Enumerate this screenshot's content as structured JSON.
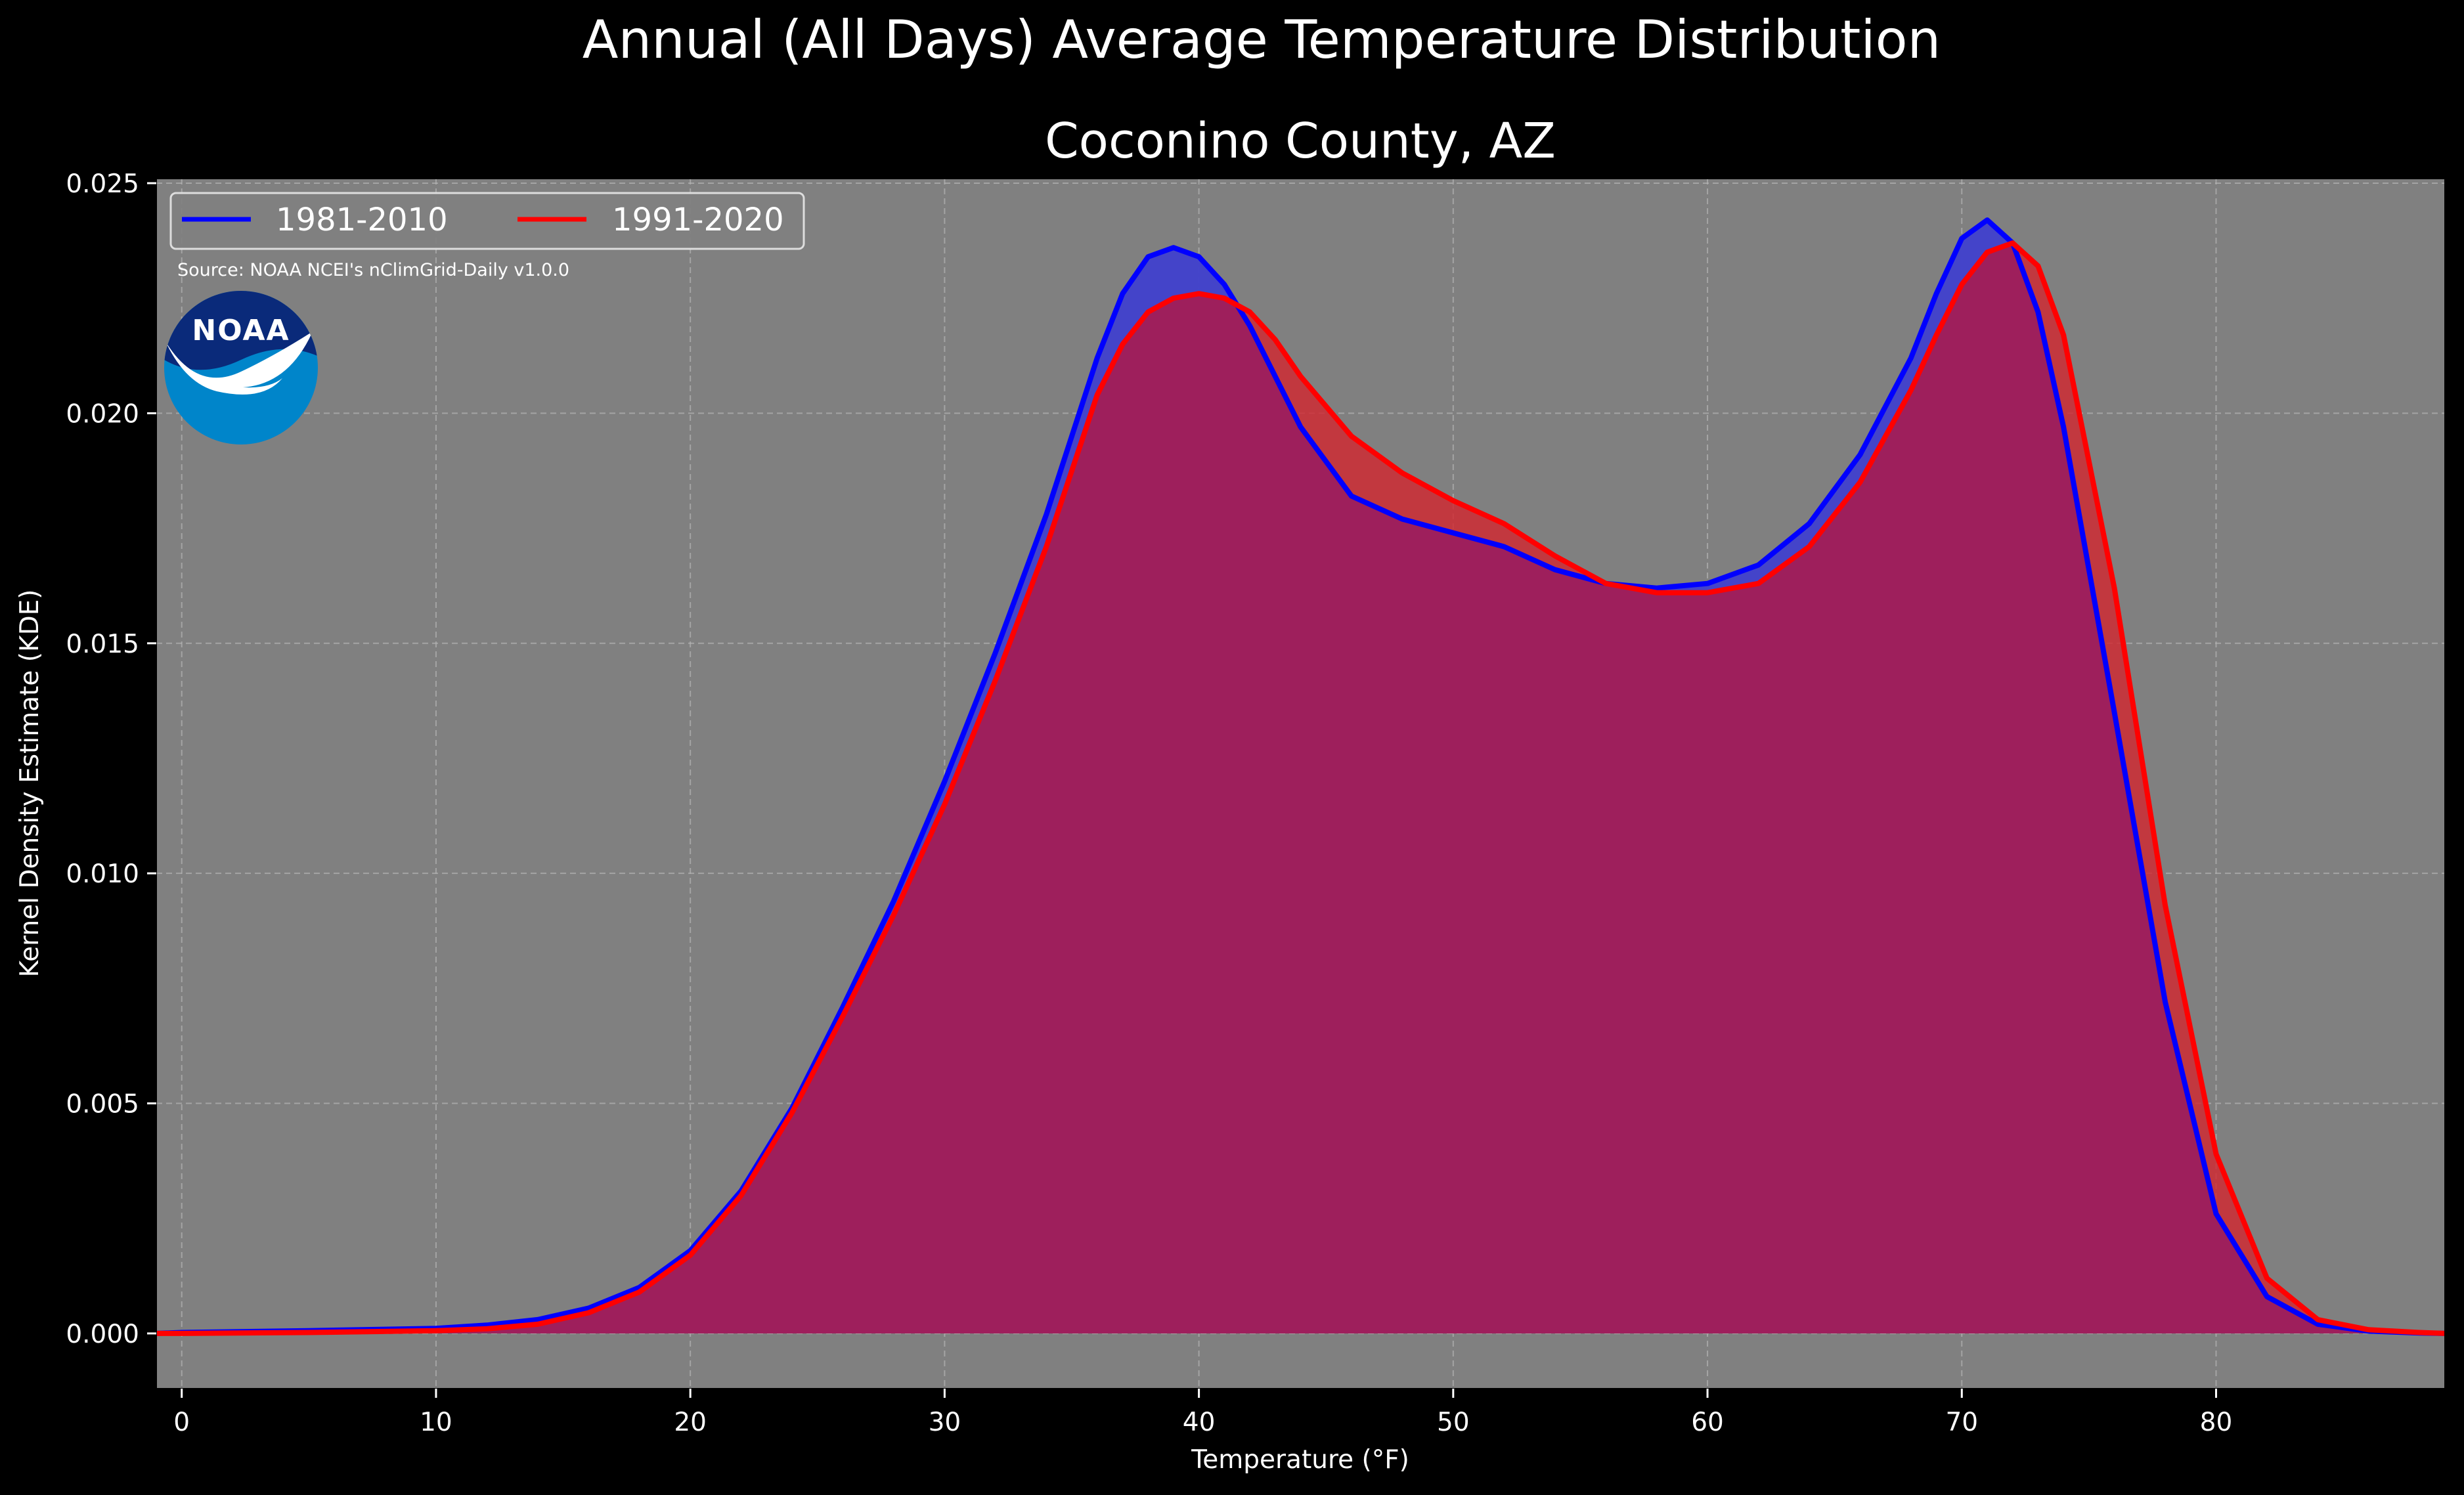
{
  "chart_data": {
    "type": "area",
    "title": "Annual (All Days) Average Temperature Distribution",
    "subtitle": "Coconino County, AZ",
    "xlabel": "Temperature (°F)",
    "ylabel": "Kernel Density Estimate (KDE)",
    "xlim": [
      -1,
      89
    ],
    "ylim": [
      -0.0012,
      0.0251
    ],
    "xticks": [
      0,
      10,
      20,
      30,
      40,
      50,
      60,
      70,
      80
    ],
    "yticks": [
      "0.000",
      "0.005",
      "0.010",
      "0.015",
      "0.020",
      "0.025"
    ],
    "grid": true,
    "legend_position": "top-left",
    "source_note": "Source: NOAA NCEI's nClimGrid-Daily v1.0.0",
    "logo_text": "NOAA",
    "colors": {
      "figure_background": "#000000",
      "plot_background": "#808080",
      "series_1": "#0000ff",
      "series_2": "#ff0000",
      "overlap_fill": "#9e1f5c",
      "logo_dark": "#0a2a7a",
      "logo_light": "#0085ca"
    },
    "series": [
      {
        "name": "1981-2010",
        "color": "#0000ff",
        "x": [
          -1,
          0,
          5,
          10,
          12,
          14,
          16,
          18,
          20,
          22,
          24,
          26,
          28,
          30,
          32,
          34,
          36,
          37,
          38,
          39,
          40,
          41,
          42,
          43,
          44,
          46,
          48,
          50,
          52,
          54,
          56,
          58,
          60,
          62,
          64,
          66,
          68,
          69,
          70,
          71,
          72,
          73,
          74,
          76,
          78,
          80,
          82,
          84,
          86,
          88,
          89
        ],
        "y": [
          0.0,
          2e-05,
          6e-05,
          0.00011,
          0.00018,
          0.0003,
          0.00055,
          0.001,
          0.0018,
          0.0031,
          0.0049,
          0.0071,
          0.0094,
          0.012,
          0.0148,
          0.0178,
          0.0212,
          0.0226,
          0.0234,
          0.0236,
          0.0234,
          0.0228,
          0.0219,
          0.0208,
          0.0197,
          0.0182,
          0.0177,
          0.0174,
          0.0171,
          0.0166,
          0.0163,
          0.0162,
          0.0163,
          0.0167,
          0.0176,
          0.0191,
          0.0212,
          0.0226,
          0.0238,
          0.0242,
          0.0237,
          0.0222,
          0.0197,
          0.0135,
          0.0072,
          0.0026,
          0.0008,
          0.0002,
          5e-05,
          1e-05,
          0.0
        ]
      },
      {
        "name": "1991-2020",
        "color": "#ff0000",
        "x": [
          -1,
          0,
          5,
          10,
          12,
          14,
          16,
          18,
          20,
          22,
          24,
          26,
          28,
          30,
          32,
          34,
          36,
          37,
          38,
          39,
          40,
          41,
          42,
          43,
          44,
          46,
          48,
          50,
          52,
          54,
          56,
          58,
          60,
          62,
          64,
          66,
          68,
          69,
          70,
          71,
          72,
          73,
          74,
          76,
          78,
          80,
          82,
          84,
          86,
          88,
          89
        ],
        "y": [
          0.0,
          0.0,
          2e-05,
          6e-05,
          0.0001,
          0.0002,
          0.00045,
          0.0009,
          0.0017,
          0.003,
          0.0048,
          0.0069,
          0.0091,
          0.0115,
          0.0142,
          0.0171,
          0.0204,
          0.0215,
          0.0222,
          0.0225,
          0.0226,
          0.0225,
          0.0222,
          0.0216,
          0.0208,
          0.0195,
          0.0187,
          0.0181,
          0.0176,
          0.0169,
          0.0163,
          0.0161,
          0.0161,
          0.0163,
          0.0171,
          0.0185,
          0.0205,
          0.0217,
          0.0228,
          0.0235,
          0.0237,
          0.0232,
          0.0217,
          0.0162,
          0.0093,
          0.0039,
          0.0012,
          0.0003,
          8e-05,
          2e-05,
          0.0
        ]
      }
    ]
  }
}
